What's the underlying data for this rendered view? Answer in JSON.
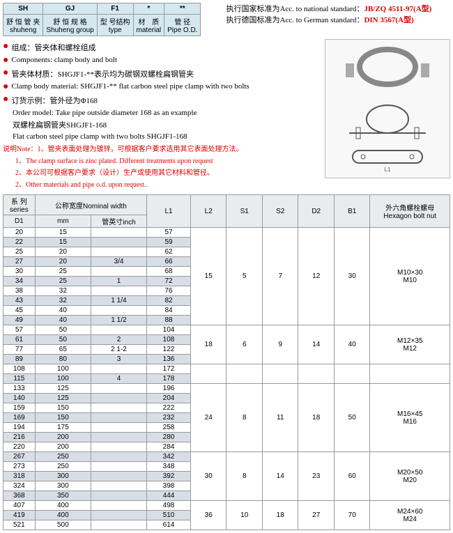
{
  "header_table": {
    "row1": [
      "SH",
      "GJ",
      "F1",
      "*",
      "**"
    ],
    "row2_cn": [
      "舒 恒 管 夹",
      "舒 恒 规 格",
      "型 号结构",
      "材　质",
      "管 径"
    ],
    "row2_en": [
      "shuheng",
      "Shuheng group",
      "type",
      "material",
      "Pipe O.D."
    ]
  },
  "standards": {
    "national_prefix": "执行国家标准为Acc. to national standard：",
    "national_code": "JB/ZQ 4511-97(A型)",
    "german_prefix": "执行德国标准为Acc. to German standard：",
    "german_code": "DIN  3567(A型)"
  },
  "bullets": [
    "组成：管夹体和螺栓组成",
    "Components: clamp body and bolt",
    "管夹体材质：SHGJF1-**表示均为碳钢双螺栓扁钢管夹",
    "Clamp body material: SHGJF1-**  flat carbon steel  pipe clamp with two bolts",
    "订货示例：管外径为Φ168"
  ],
  "order_lines": [
    "Order model: Take pipe outside diameter 168 as an example",
    "双螺栓扁钢管夹SHGJF1-168",
    "Flat carbon steel pipe clamp with two bolts SHGJF1-168"
  ],
  "note_label": "说明Note：",
  "notes": [
    "1、管夹表面处理为镀锌，可根据客户要求选用其它表面处理方法。",
    "1、The clamp surface is zinc plated. Different treatments upon request",
    "2、本公司可根据客户要求（设计）生产或使用其它材料和管径。",
    "2、Other materials and pipe o.d. upon request.."
  ],
  "table_headers": {
    "series_cn": "系 列series",
    "d1": "D1",
    "nom_cn": "公称宽度Nominal width",
    "mm": "mm",
    "inch": "管英寸inch",
    "l1": "L1",
    "l2": "L2",
    "s1": "S1",
    "s2": "S2",
    "d2": "D2",
    "b1": "B1",
    "bolt_cn": "外六角螺栓螺母",
    "bolt_en": "Hexagon bolt nut"
  },
  "col_widths": {
    "d1": 40,
    "mm": 70,
    "inch": 70,
    "l1": 55,
    "l2": 45,
    "s1": 45,
    "s2": 45,
    "d2": 45,
    "b1": 45,
    "bolt": 100
  },
  "groups": [
    {
      "rows": [
        {
          "d1": "20",
          "mm": "15",
          "inch": "",
          "l1": "57",
          "hl": false
        },
        {
          "d1": "22",
          "mm": "15",
          "inch": "",
          "l1": "59",
          "hl": true
        },
        {
          "d1": "25",
          "mm": "20",
          "inch": "",
          "l1": "62",
          "hl": false
        },
        {
          "d1": "27",
          "mm": "20",
          "inch": "3/4",
          "l1": "66",
          "hl": true
        },
        {
          "d1": "30",
          "mm": "25",
          "inch": "",
          "l1": "68",
          "hl": false
        },
        {
          "d1": "34",
          "mm": "25",
          "inch": "1",
          "l1": "72",
          "hl": true
        },
        {
          "d1": "38",
          "mm": "32",
          "inch": "",
          "l1": "76",
          "hl": false
        },
        {
          "d1": "43",
          "mm": "32",
          "inch": "1 1/4",
          "l1": "82",
          "hl": true
        },
        {
          "d1": "45",
          "mm": "40",
          "inch": "",
          "l1": "84",
          "hl": false
        },
        {
          "d1": "49",
          "mm": "40",
          "inch": "1 1/2",
          "l1": "88",
          "hl": true
        }
      ],
      "l2": "15",
      "s1": "5",
      "s2": "7",
      "d2": "12",
      "b1": "30",
      "bolt": "M10×30\nM10"
    },
    {
      "rows": [
        {
          "d1": "57",
          "mm": "50",
          "inch": "",
          "l1": "104",
          "hl": false
        },
        {
          "d1": "61",
          "mm": "50",
          "inch": "2",
          "l1": "108",
          "hl": true
        },
        {
          "d1": "77",
          "mm": "65",
          "inch": "2 1-2",
          "l1": "122",
          "hl": false
        },
        {
          "d1": "89",
          "mm": "80",
          "inch": "3",
          "l1": "136",
          "hl": true
        }
      ],
      "l2": "18",
      "s1": "6",
      "s2": "9",
      "d2": "14",
      "b1": "40",
      "bolt": "M12×35\nM12"
    },
    {
      "rows": [
        {
          "d1": "108",
          "mm": "100",
          "inch": "",
          "l1": "172",
          "hl": false
        },
        {
          "d1": "115",
          "mm": "100",
          "inch": "4",
          "l1": "178",
          "hl": true
        }
      ],
      "l2": "",
      "s1": "",
      "s2": "",
      "d2": "",
      "b1": "",
      "bolt": ""
    },
    {
      "rows": [
        {
          "d1": "133",
          "mm": "125",
          "inch": "",
          "l1": "196",
          "hl": false
        },
        {
          "d1": "140",
          "mm": "125",
          "inch": "",
          "l1": "204",
          "hl": true
        },
        {
          "d1": "159",
          "mm": "150",
          "inch": "",
          "l1": "222",
          "hl": false
        },
        {
          "d1": "169",
          "mm": "150",
          "inch": "",
          "l1": "232",
          "hl": true
        },
        {
          "d1": "194",
          "mm": "175",
          "inch": "",
          "l1": "258",
          "hl": false
        },
        {
          "d1": "216",
          "mm": "200",
          "inch": "",
          "l1": "280",
          "hl": true
        },
        {
          "d1": "220",
          "mm": "200",
          "inch": "",
          "l1": "284",
          "hl": false
        }
      ],
      "l2": "24",
      "s1": "8",
      "s2": "11",
      "d2": "18",
      "b1": "50",
      "bolt": "M16×45\nM16"
    },
    {
      "rows": [
        {
          "d1": "267",
          "mm": "250",
          "inch": "",
          "l1": "342",
          "hl": true
        },
        {
          "d1": "273",
          "mm": "250",
          "inch": "",
          "l1": "348",
          "hl": false
        },
        {
          "d1": "318",
          "mm": "300",
          "inch": "",
          "l1": "392",
          "hl": true
        },
        {
          "d1": "324",
          "mm": "300",
          "inch": "",
          "l1": "398",
          "hl": false
        },
        {
          "d1": "368",
          "mm": "350",
          "inch": "",
          "l1": "444",
          "hl": true
        }
      ],
      "l2": "30",
      "s1": "8",
      "s2": "14",
      "d2": "23",
      "b1": "60",
      "bolt": "M20×50\nM20"
    },
    {
      "rows": [
        {
          "d1": "407",
          "mm": "400",
          "inch": "",
          "l1": "498",
          "hl": false
        },
        {
          "d1": "419",
          "mm": "400",
          "inch": "",
          "l1": "510",
          "hl": true
        },
        {
          "d1": "521",
          "mm": "500",
          "inch": "",
          "l1": "614",
          "hl": false
        }
      ],
      "l2": "36",
      "s1": "10",
      "s2": "18",
      "d2": "27",
      "b1": "70",
      "bolt": "M24×60\nM24"
    }
  ],
  "colors": {
    "accent": "#d00",
    "header_bg": "#e8ecef",
    "hl_bg": "#d8dee5"
  }
}
